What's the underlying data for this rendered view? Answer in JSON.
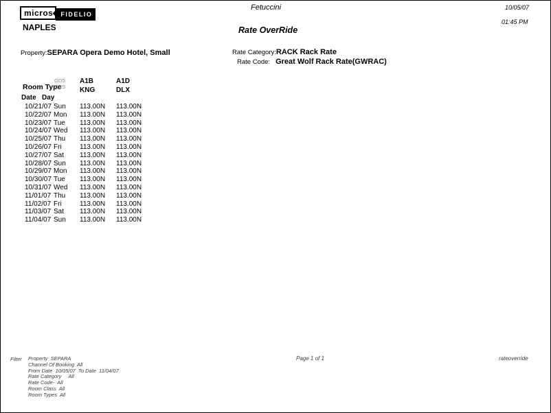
{
  "logo": {
    "micros": "micros",
    "fidelio": "FIDELIO"
  },
  "header": {
    "hotel_name": "NAPLES",
    "chain_name": "Fetuccini",
    "report_title": "Rate OverRide",
    "print_date": "10/05/07",
    "print_time": "01:45 PM"
  },
  "property": {
    "label": "Property:",
    "value": "SEPARA Opera Demo Hotel, Small"
  },
  "rate_category": {
    "label": "Rate Category:",
    "value": "RACK Rack Rate"
  },
  "rate_code": {
    "label": "Rate Code:",
    "value": "Great Wolf Rack Rate(GWRAC)"
  },
  "table": {
    "room_type_label": "Room Type",
    "channel_line_1": "GDS",
    "channel_line_2": "ORS",
    "columns": [
      {
        "code": "A1B",
        "room": "KNG"
      },
      {
        "code": "A1D",
        "room": "DLX"
      }
    ],
    "date_label": "Date",
    "day_label": "Day",
    "rows": [
      {
        "date": "10/21/07",
        "day": "Sun",
        "rates": [
          "113.00N",
          "113.00N"
        ]
      },
      {
        "date": "10/22/07",
        "day": "Mon",
        "rates": [
          "113.00N",
          "113.00N"
        ]
      },
      {
        "date": "10/23/07",
        "day": "Tue",
        "rates": [
          "113.00N",
          "113.00N"
        ]
      },
      {
        "date": "10/24/07",
        "day": "Wed",
        "rates": [
          "113.00N",
          "113.00N"
        ]
      },
      {
        "date": "10/25/07",
        "day": "Thu",
        "rates": [
          "113.00N",
          "113.00N"
        ]
      },
      {
        "date": "10/26/07",
        "day": "Fri",
        "rates": [
          "113.00N",
          "113.00N"
        ]
      },
      {
        "date": "10/27/07",
        "day": "Sat",
        "rates": [
          "113.00N",
          "113.00N"
        ]
      },
      {
        "date": "10/28/07",
        "day": "Sun",
        "rates": [
          "113.00N",
          "113.00N"
        ]
      },
      {
        "date": "10/29/07",
        "day": "Mon",
        "rates": [
          "113.00N",
          "113.00N"
        ]
      },
      {
        "date": "10/30/07",
        "day": "Tue",
        "rates": [
          "113.00N",
          "113.00N"
        ]
      },
      {
        "date": "10/31/07",
        "day": "Wed",
        "rates": [
          "113.00N",
          "113.00N"
        ]
      },
      {
        "date": "11/01/07",
        "day": "Thu",
        "rates": [
          "113.00N",
          "113.00N"
        ]
      },
      {
        "date": "11/02/07",
        "day": "Fri",
        "rates": [
          "113.00N",
          "113.00N"
        ]
      },
      {
        "date": "11/03/07",
        "day": "Sat",
        "rates": [
          "113.00N",
          "113.00N"
        ]
      },
      {
        "date": "11/04/07",
        "day": "Sun",
        "rates": [
          "113.00N",
          "113.00N"
        ]
      }
    ]
  },
  "footer": {
    "filter_label": "Filter",
    "filter_lines": [
      "Property  SEPARA",
      "Channel Of Booking  All",
      "From Date  10/05/07  To Date  11/04/07",
      "Rate Category     All",
      "Rate Code-  All",
      "Room Class  All",
      "Room Types  All"
    ],
    "page_info": "Page 1 of 1",
    "report_id": "rateoverride"
  }
}
